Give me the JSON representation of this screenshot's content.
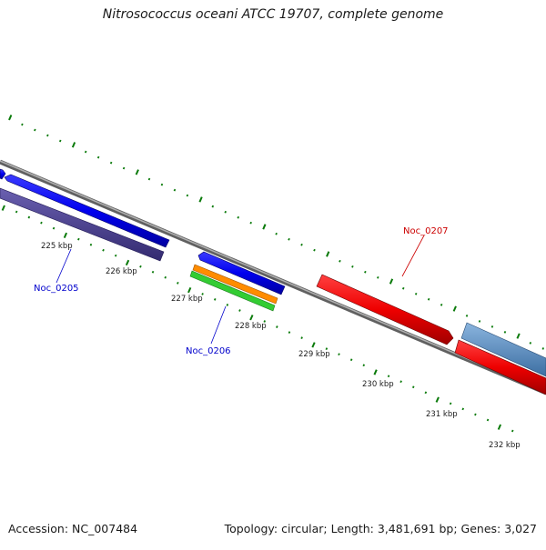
{
  "title": "Nitrosococcus oceani ATCC 19707, complete genome",
  "footer": {
    "accession": "Accession: NC_007484",
    "summary": "Topology: circular; Length: 3,481,691 bp; Genes: 3,027"
  },
  "scale_labels": [
    "225 kbp",
    "226 kbp",
    "227 kbp",
    "228 kbp",
    "229 kbp",
    "230 kbp",
    "231 kbp",
    "232 kbp"
  ],
  "gene_labels": [
    {
      "id": "Noc_0205",
      "color": "#0000cc"
    },
    {
      "id": "Noc_0206",
      "color": "#0000cc"
    },
    {
      "id": "Noc_0207",
      "color": "#cc0000"
    }
  ],
  "colors": {
    "backbone": "#808080",
    "forward_gene": "#0000ee",
    "reverse_gene": "#ee0000",
    "rna_orange": "#ff8c00",
    "rna_green": "#33cc33",
    "feature_purple": "#4a3f8f",
    "feature_steel": "#5b8fc4",
    "ticks": "#0a7a0a"
  }
}
